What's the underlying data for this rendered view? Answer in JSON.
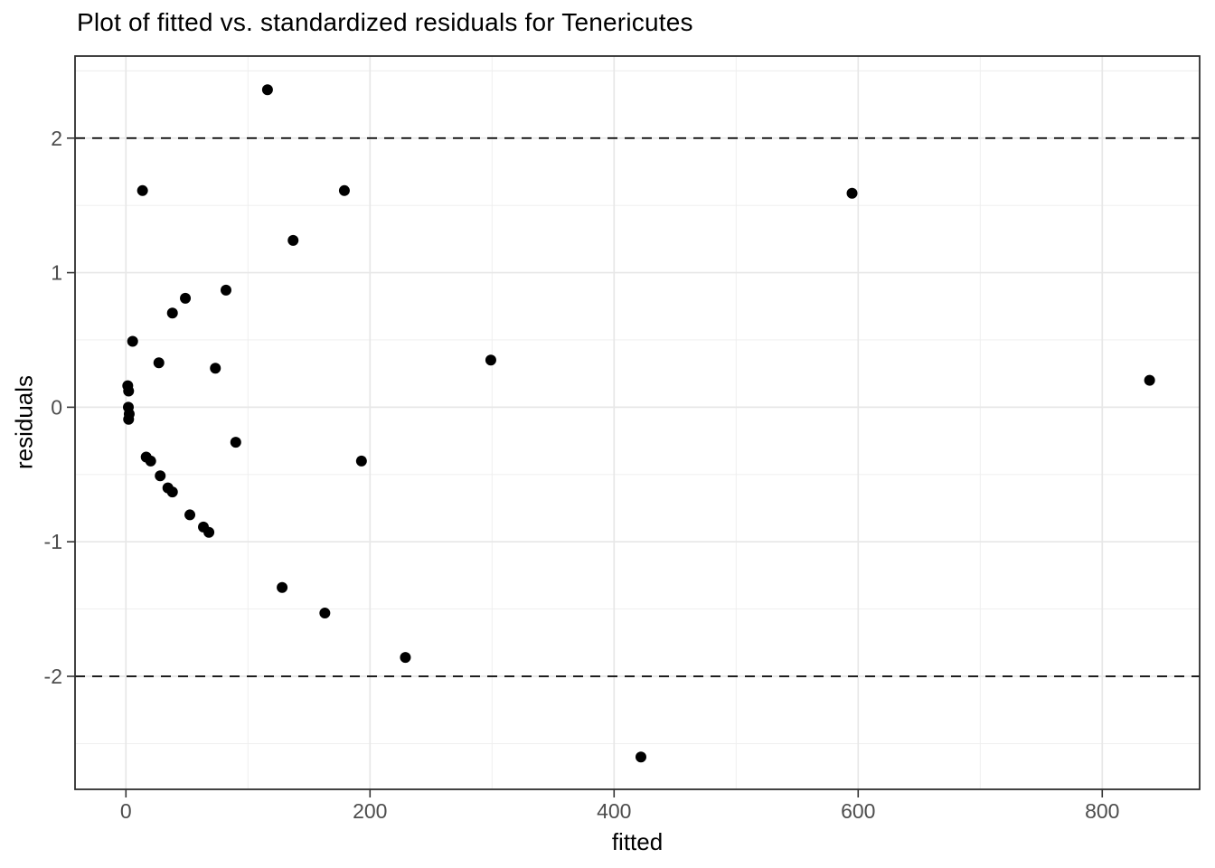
{
  "chart_data": {
    "type": "scatter",
    "title": "Plot of fitted vs. standardized residuals for Tenericutes",
    "xlabel": "fitted",
    "ylabel": "residuals",
    "xlim": [
      -41.7,
      879.8
    ],
    "ylim": [
      -2.84,
      2.61
    ],
    "x_ticks": [
      {
        "value": 0,
        "label": "0"
      },
      {
        "value": 200,
        "label": "200"
      },
      {
        "value": 400,
        "label": "400"
      },
      {
        "value": 600,
        "label": "600"
      },
      {
        "value": 800,
        "label": "800"
      }
    ],
    "y_ticks": [
      {
        "value": 2,
        "label": "2"
      },
      {
        "value": 1,
        "label": "1"
      },
      {
        "value": 0,
        "label": "0"
      },
      {
        "value": -1,
        "label": "-1"
      },
      {
        "value": -2,
        "label": "-2"
      }
    ],
    "x_minor_ticks": [
      100,
      300,
      500,
      700
    ],
    "y_minor_ticks": [
      -2.5,
      -1.5,
      -0.5,
      0.5,
      1.5,
      2.5
    ],
    "reference_lines": [
      {
        "y": 2,
        "style": "dashed"
      },
      {
        "y": -2,
        "style": "dashed"
      }
    ],
    "grid": "on",
    "legend": "none",
    "points": [
      [
        116,
        2.36
      ],
      [
        13.6,
        1.61
      ],
      [
        179,
        1.61
      ],
      [
        595,
        1.59
      ],
      [
        137,
        1.24
      ],
      [
        82,
        0.87
      ],
      [
        48.7,
        0.81
      ],
      [
        38.1,
        0.7
      ],
      [
        5.5,
        0.49
      ],
      [
        27,
        0.33
      ],
      [
        73.3,
        0.29
      ],
      [
        299,
        0.35
      ],
      [
        838.8,
        0.2
      ],
      [
        1.5,
        0.16
      ],
      [
        2.2,
        0.12
      ],
      [
        2.0,
        0.0
      ],
      [
        2.7,
        -0.05
      ],
      [
        2.2,
        -0.09
      ],
      [
        90,
        -0.26
      ],
      [
        16.6,
        -0.37
      ],
      [
        20.3,
        -0.4
      ],
      [
        193,
        -0.4
      ],
      [
        28.1,
        -0.51
      ],
      [
        34.4,
        -0.6
      ],
      [
        38.1,
        -0.63
      ],
      [
        52.4,
        -0.8
      ],
      [
        63.5,
        -0.89
      ],
      [
        68,
        -0.93
      ],
      [
        128,
        -1.34
      ],
      [
        163,
        -1.53
      ],
      [
        229,
        -1.86
      ],
      [
        422,
        -2.6
      ]
    ],
    "colors": {
      "background": "#FFFFFF",
      "panel_background": "#FFFFFF",
      "grid_major": "#E7E7E7",
      "grid_minor": "#EDEDED",
      "panel_border": "#2E2E2E",
      "tick": "#333333",
      "tick_label": "#4D4D4D",
      "text": "#000000",
      "point": "#000000",
      "reference_line": "#000000"
    }
  }
}
